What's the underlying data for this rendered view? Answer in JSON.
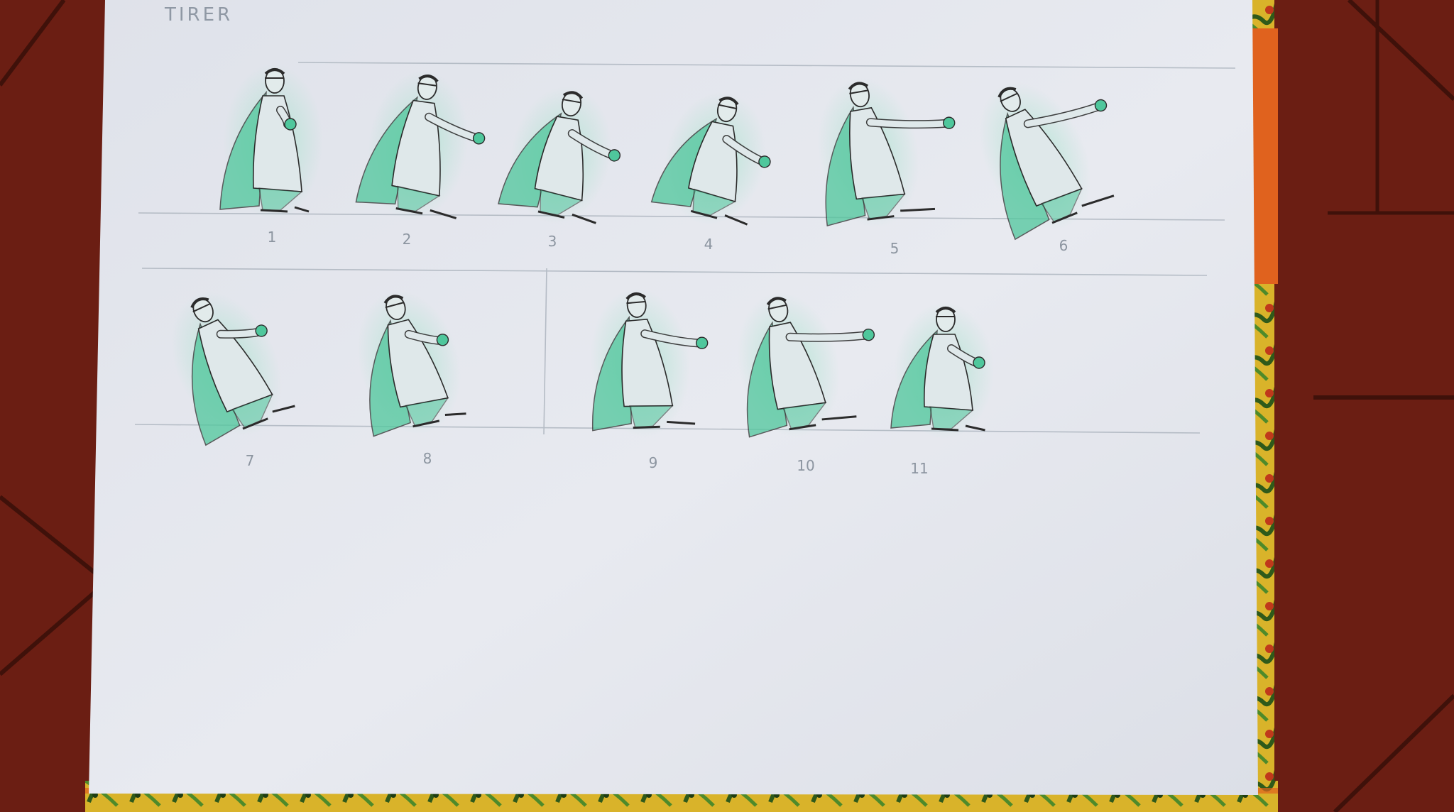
{
  "sheet": {
    "label": "TIRER"
  },
  "frames_row1": [
    "1",
    "2",
    "3",
    "4",
    "5",
    "6"
  ],
  "frames_row2": [
    "7",
    "8",
    "9",
    "10",
    "11"
  ],
  "colors": {
    "table_tile": "#6a1d12",
    "grout": "#4a140c",
    "paper": "#e6e8ef",
    "pencil": "#2b2b2b",
    "green_wash": "#4fc79c",
    "ruled_line": "#a9b1bb",
    "book_cover": "#3f6e25",
    "book_orange": "#e0621e"
  }
}
